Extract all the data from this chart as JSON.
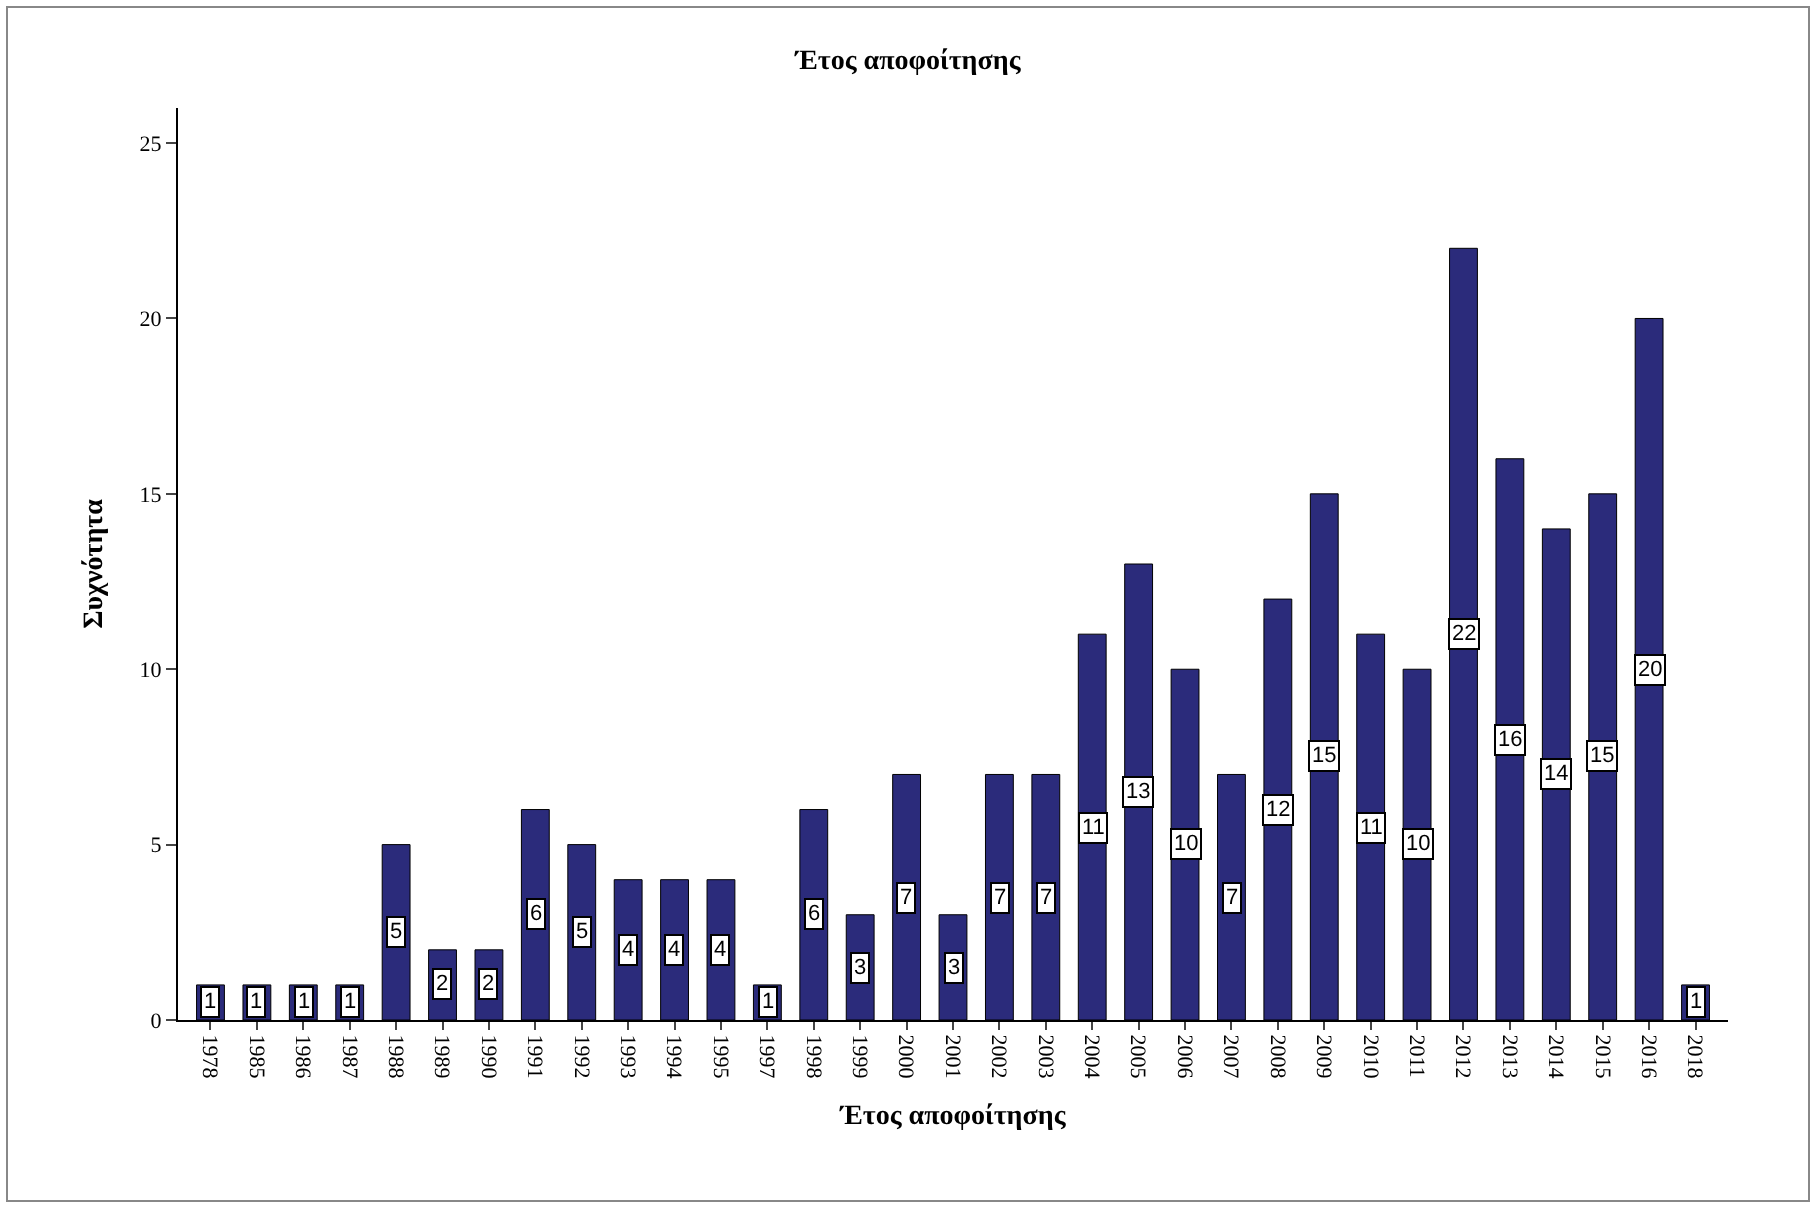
{
  "chart_data": {
    "type": "bar",
    "title": "Έτος αποφοίτησης",
    "xlabel": "Έτος αποφοίτησης",
    "ylabel": "Συχνότητα",
    "categories": [
      "1978",
      "1985",
      "1986",
      "1987",
      "1988",
      "1989",
      "1990",
      "1991",
      "1992",
      "1993",
      "1994",
      "1995",
      "1997",
      "1998",
      "1999",
      "2000",
      "2001",
      "2002",
      "2003",
      "2004",
      "2005",
      "2006",
      "2007",
      "2008",
      "2009",
      "2010",
      "2011",
      "2012",
      "2013",
      "2014",
      "2015",
      "2016",
      "2018"
    ],
    "values": [
      1,
      1,
      1,
      1,
      5,
      2,
      2,
      6,
      5,
      4,
      4,
      4,
      1,
      6,
      3,
      7,
      3,
      7,
      7,
      11,
      13,
      10,
      7,
      12,
      15,
      11,
      10,
      22,
      16,
      14,
      15,
      20,
      1
    ],
    "color": "#2b2b7b",
    "ylim": [
      0,
      26
    ],
    "yticks": [
      0,
      5,
      10,
      15,
      20,
      25
    ],
    "grid": false,
    "data_labels": true
  }
}
